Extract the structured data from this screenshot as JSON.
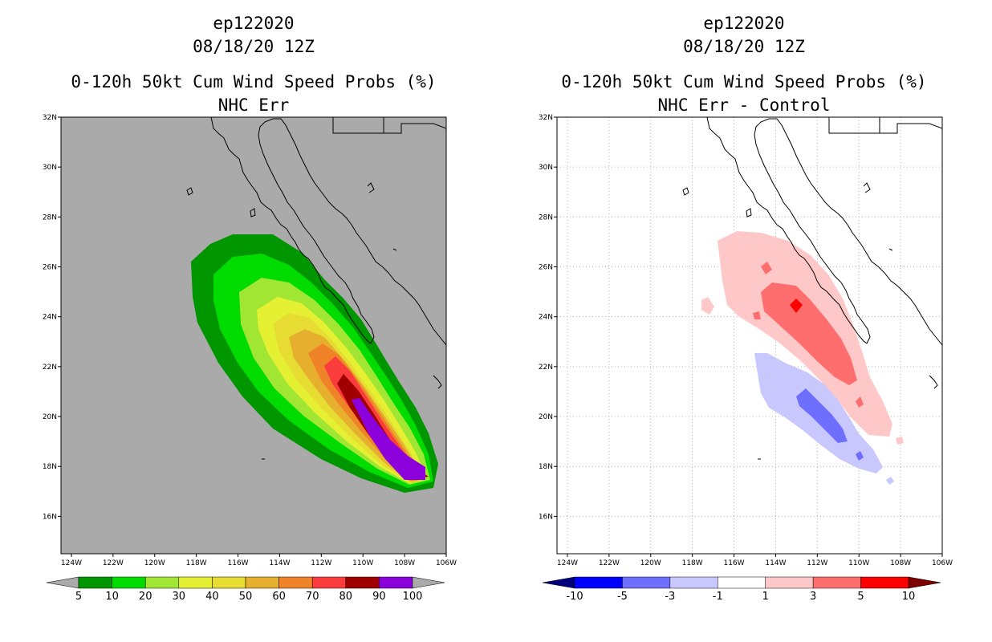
{
  "chart_data": [
    {
      "type": "heatmap",
      "storm_id": "ep122020",
      "date": "08/18/20 12Z",
      "title": "0-120h 50kt Cum Wind Speed Probs (%)",
      "subtitle": "NHC Err",
      "background_color": "#aaaaaa",
      "x_ticks": [
        "124W",
        "122W",
        "120W",
        "118W",
        "116W",
        "114W",
        "112W",
        "110W",
        "108W",
        "106W"
      ],
      "y_ticks": [
        "32N",
        "30N",
        "28N",
        "26N",
        "24N",
        "22N",
        "20N",
        "18N",
        "16N"
      ],
      "lon_range": [
        -124.5,
        -106
      ],
      "lat_range": [
        14.5,
        32
      ],
      "grid": false,
      "colorbar": {
        "labels": [
          "5",
          "10",
          "20",
          "30",
          "40",
          "50",
          "60",
          "70",
          "80",
          "90",
          "100"
        ],
        "colors": [
          "#aaaaaa",
          "#009600",
          "#00dc00",
          "#a0e632",
          "#e6f032",
          "#e6dc32",
          "#e6af2d",
          "#f08228",
          "#fa3c3c",
          "#a00000",
          "#8c00dc",
          "#aaaaaa"
        ]
      },
      "contour_levels": [
        5,
        10,
        20,
        30,
        40,
        50,
        60,
        70,
        80,
        90
      ]
    },
    {
      "type": "heatmap",
      "storm_id": "ep122020",
      "date": "08/18/20 12Z",
      "title": "0-120h 50kt Cum Wind Speed Probs (%)",
      "subtitle": "NHC Err - Control",
      "background_color": "#ffffff",
      "x_ticks": [
        "124W",
        "122W",
        "120W",
        "118W",
        "116W",
        "114W",
        "112W",
        "110W",
        "108W",
        "106W"
      ],
      "y_ticks": [
        "32N",
        "30N",
        "28N",
        "26N",
        "24N",
        "22N",
        "20N",
        "18N",
        "16N"
      ],
      "lon_range": [
        -124.5,
        -106
      ],
      "lat_range": [
        14.5,
        32
      ],
      "grid": true,
      "colorbar": {
        "labels": [
          "-10",
          "-5",
          "-3",
          "-1",
          "1",
          "3",
          "5",
          "10"
        ],
        "colors": [
          "#00007d",
          "#0000ff",
          "#6e6eff",
          "#c8c8ff",
          "#ffffff",
          "#ffc8c8",
          "#ff6e6e",
          "#ff0000",
          "#7d0000"
        ]
      },
      "contour_levels": [
        -5,
        -3,
        -1,
        1,
        3,
        5
      ]
    }
  ]
}
